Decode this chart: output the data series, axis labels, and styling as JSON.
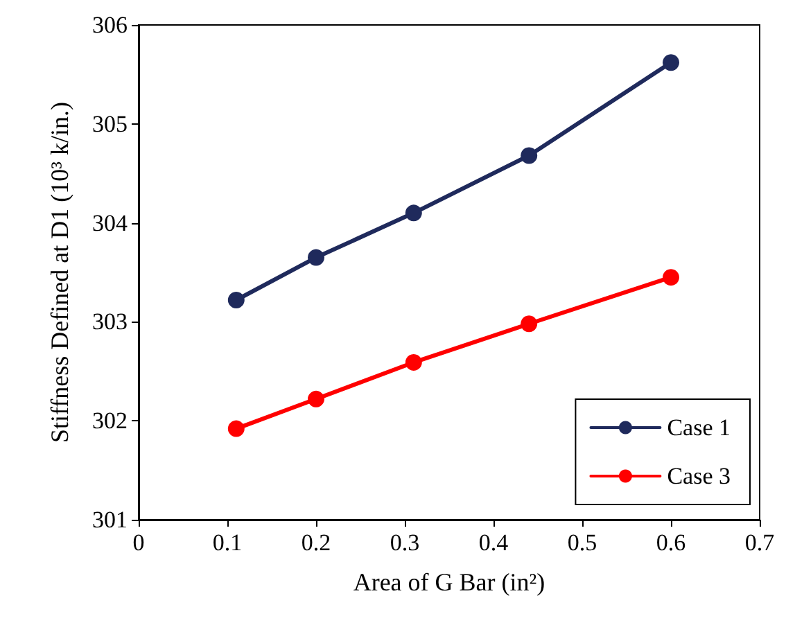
{
  "chart_data": {
    "type": "line",
    "xlabel": "Area of G Bar (in²)",
    "ylabel": "Stiffness Defined at D1 (10³ k/in.)",
    "x": [
      0.11,
      0.2,
      0.31,
      0.44,
      0.6
    ],
    "series": [
      {
        "name": "Case 1",
        "color": "#1f2a5c",
        "values": [
          303.22,
          303.65,
          304.1,
          304.68,
          305.62
        ]
      },
      {
        "name": "Case 3",
        "color": "#ff0000",
        "values": [
          301.92,
          302.22,
          302.59,
          302.98,
          303.45
        ]
      }
    ],
    "xlim": [
      0,
      0.7
    ],
    "xticks": [
      0,
      0.1,
      0.2,
      0.3,
      0.4,
      0.5,
      0.6,
      0.7
    ],
    "ylim": [
      301,
      306
    ],
    "yticks": [
      301,
      302,
      303,
      304,
      305,
      306
    ],
    "grid": false,
    "legend": "bottom right",
    "marker": "circle",
    "line_style": "solid"
  }
}
